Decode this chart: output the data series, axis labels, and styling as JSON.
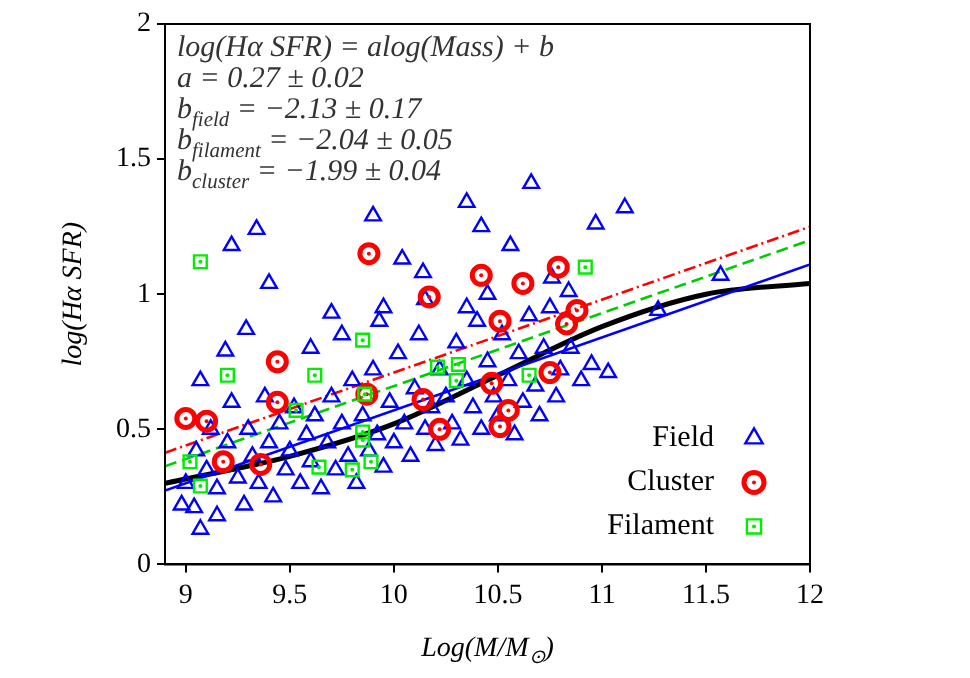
{
  "chart_data": {
    "type": "scatter",
    "xlabel": "Log(M/M$_{⊙}$)",
    "ylabel": "log(Hα SFR)",
    "xlim": [
      8.9,
      12
    ],
    "xticks": [
      9,
      9.5,
      10,
      10.5,
      11,
      11.5,
      12
    ],
    "ylim": [
      0,
      2
    ],
    "yticks": [
      0,
      0.5,
      1,
      1.5,
      2
    ],
    "grid": false,
    "legend": "bottom right",
    "annotations": [
      "log(Hα SFR) = alog(Mass) + b",
      "a = 0.27 ± 0.02",
      "b$_{field}$ = −2.13 ± 0.17",
      "b$_{filament}$ = −2.04 ± 0.05",
      "b$_{cluster}$ = −1.99 ± 0.04"
    ],
    "series": [
      {
        "name": "Field",
        "color": "#0000ff",
        "marker": "triangle",
        "x": [
          10.66,
          10.35,
          9.9,
          10.42,
          9.34,
          9.22,
          11.11,
          10.97,
          10.56,
          10.04,
          10.14,
          9.4,
          11.57,
          10.76,
          10.84,
          9.7,
          9.29,
          9.93,
          11.27,
          10.95,
          11.03,
          9.19,
          9.07,
          9.04,
          9.07,
          9.15,
          8.98,
          9.0,
          9.05,
          9.1,
          9.12,
          9.15,
          9.2,
          9.22,
          9.25,
          9.28,
          9.3,
          9.32,
          9.35,
          9.38,
          9.4,
          9.42,
          9.45,
          9.48,
          9.5,
          9.52,
          9.55,
          9.58,
          9.6,
          9.62,
          9.65,
          9.68,
          9.7,
          9.72,
          9.75,
          9.78,
          9.8,
          9.82,
          9.85,
          9.88,
          9.9,
          9.92,
          9.95,
          9.98,
          10.0,
          10.02,
          10.05,
          10.08,
          10.1,
          10.12,
          10.15,
          10.18,
          10.2,
          10.22,
          10.25,
          10.28,
          10.3,
          10.32,
          10.35,
          10.38,
          10.4,
          10.42,
          10.45,
          10.48,
          10.5,
          10.52,
          10.55,
          10.58,
          10.6,
          10.62,
          10.65,
          10.68,
          10.7,
          10.72,
          10.75,
          10.78,
          10.8,
          10.85,
          10.9,
          9.95,
          10.15,
          10.35,
          10.45,
          9.6,
          9.75
        ],
        "values": [
          1.41,
          1.34,
          1.29,
          1.25,
          1.24,
          1.18,
          1.32,
          1.26,
          1.18,
          1.13,
          1.08,
          1.04,
          1.07,
          1.06,
          1.01,
          0.93,
          0.87,
          0.9,
          0.94,
          0.74,
          0.71,
          0.79,
          0.68,
          0.21,
          0.13,
          0.18,
          0.22,
          0.3,
          0.42,
          0.35,
          0.5,
          0.28,
          0.45,
          0.6,
          0.32,
          0.22,
          0.5,
          0.4,
          0.3,
          0.62,
          0.45,
          0.25,
          0.52,
          0.35,
          0.42,
          0.58,
          0.3,
          0.48,
          0.38,
          0.55,
          0.28,
          0.45,
          0.62,
          0.35,
          0.52,
          0.4,
          0.68,
          0.3,
          0.55,
          0.42,
          0.72,
          0.48,
          0.36,
          0.6,
          0.45,
          0.78,
          0.52,
          0.4,
          0.65,
          0.85,
          0.5,
          0.58,
          0.44,
          0.72,
          0.62,
          0.52,
          0.82,
          0.46,
          0.68,
          0.58,
          0.9,
          0.5,
          0.75,
          0.62,
          0.55,
          0.85,
          0.68,
          0.48,
          0.78,
          0.6,
          0.92,
          0.66,
          0.55,
          0.8,
          0.95,
          0.62,
          0.72,
          0.8,
          0.68,
          0.95,
          0.98,
          0.95,
          1.0,
          0.8,
          0.85
        ]
      },
      {
        "name": "Cluster",
        "color": "#ff0000",
        "marker": "circle",
        "x": [
          9.88,
          10.17,
          10.42,
          10.62,
          10.79,
          10.51,
          10.88,
          10.83,
          9.44,
          9.44,
          9.0,
          9.1,
          9.18,
          9.36,
          9.87,
          10.14,
          10.22,
          10.47,
          10.51,
          10.55,
          10.75
        ],
        "values": [
          1.15,
          0.99,
          1.07,
          1.04,
          1.1,
          0.9,
          0.94,
          0.89,
          0.75,
          0.6,
          0.54,
          0.53,
          0.38,
          0.37,
          0.63,
          0.61,
          0.5,
          0.67,
          0.51,
          0.57,
          0.71
        ]
      },
      {
        "name": "Filament",
        "color": "#00ee00",
        "marker": "square",
        "x": [
          9.07,
          10.92,
          9.2,
          9.62,
          9.85,
          9.53,
          9.86,
          10.21,
          10.31,
          10.3,
          10.65,
          9.02,
          9.07,
          9.64,
          9.8,
          9.89,
          9.85,
          9.85
        ],
        "values": [
          1.12,
          1.1,
          0.7,
          0.7,
          0.83,
          0.57,
          0.63,
          0.73,
          0.74,
          0.68,
          0.7,
          0.38,
          0.29,
          0.36,
          0.35,
          0.38,
          0.46,
          0.49
        ]
      },
      {
        "type": "line",
        "color": "#0000ff",
        "line_style": "solid",
        "x": [
          8.9,
          12
        ],
        "values": [
          0.273,
          1.11
        ]
      },
      {
        "type": "line",
        "color": "#00cc00",
        "line_style": "dashed",
        "x": [
          8.9,
          12
        ],
        "values": [
          0.363,
          1.2
        ]
      },
      {
        "type": "line",
        "color": "#ff0000",
        "line_style": "dotted",
        "x": [
          8.9,
          12
        ],
        "values": [
          0.413,
          1.25
        ]
      },
      {
        "type": "line",
        "color": "#000000",
        "line_style": "solid",
        "x": [
          8.9,
          9.5,
          10,
          10.5,
          11,
          11.5,
          12
        ],
        "values": [
          0.3,
          0.4,
          0.52,
          0.7,
          0.88,
          1.0,
          1.04
        ]
      }
    ]
  }
}
